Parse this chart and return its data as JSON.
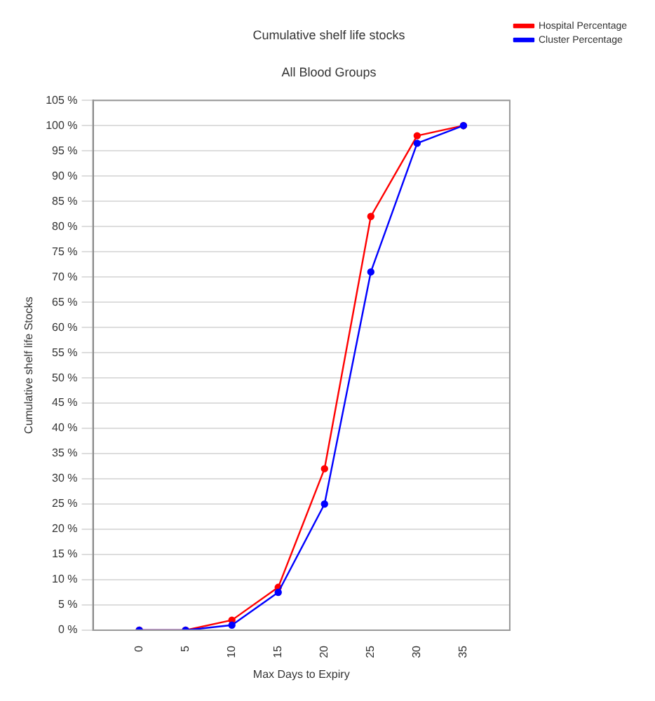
{
  "chart_data": {
    "type": "line",
    "title": "Cumulative shelf life stocks",
    "subtitle": "All Blood Groups",
    "xlabel": "Max Days to Expiry",
    "ylabel": "Cumulative shelf life Stocks",
    "x": [
      0,
      5,
      10,
      15,
      20,
      25,
      30,
      35
    ],
    "series": [
      {
        "name": "Hospital Percentage",
        "color": "#ff0000",
        "values": [
          0,
          0,
          2,
          8.5,
          32,
          82,
          98,
          100
        ]
      },
      {
        "name": "Cluster Percentage",
        "color": "#0000ff",
        "values": [
          0,
          0,
          1,
          7.5,
          25,
          71,
          96.5,
          100
        ]
      }
    ],
    "xlim": [
      -5,
      40
    ],
    "xticks": [
      0,
      5,
      10,
      15,
      20,
      25,
      30,
      35
    ],
    "ylim": [
      0,
      105
    ],
    "yticks": [
      {
        "value": 0,
        "label": "0 %"
      },
      {
        "value": 5,
        "label": "5 %"
      },
      {
        "value": 10,
        "label": "10 %"
      },
      {
        "value": 15,
        "label": "15 %"
      },
      {
        "value": 20,
        "label": "20 %"
      },
      {
        "value": 25,
        "label": "25 %"
      },
      {
        "value": 30,
        "label": "30 %"
      },
      {
        "value": 35,
        "label": "35 %"
      },
      {
        "value": 40,
        "label": "40 %"
      },
      {
        "value": 45,
        "label": "45 %"
      },
      {
        "value": 50,
        "label": "50 %"
      },
      {
        "value": 55,
        "label": "55 %"
      },
      {
        "value": 60,
        "label": "60 %"
      },
      {
        "value": 65,
        "label": "65 %"
      },
      {
        "value": 70,
        "label": "70 %"
      },
      {
        "value": 75,
        "label": "75 %"
      },
      {
        "value": 80,
        "label": "80 %"
      },
      {
        "value": 85,
        "label": "85 %"
      },
      {
        "value": 90,
        "label": "90 %"
      },
      {
        "value": 95,
        "label": "95 %"
      },
      {
        "value": 100,
        "label": "100 %"
      },
      {
        "value": 105,
        "label": "105 %"
      }
    ],
    "grid": "y",
    "legend": "top right",
    "marker": "circle",
    "line_style": "solid"
  }
}
